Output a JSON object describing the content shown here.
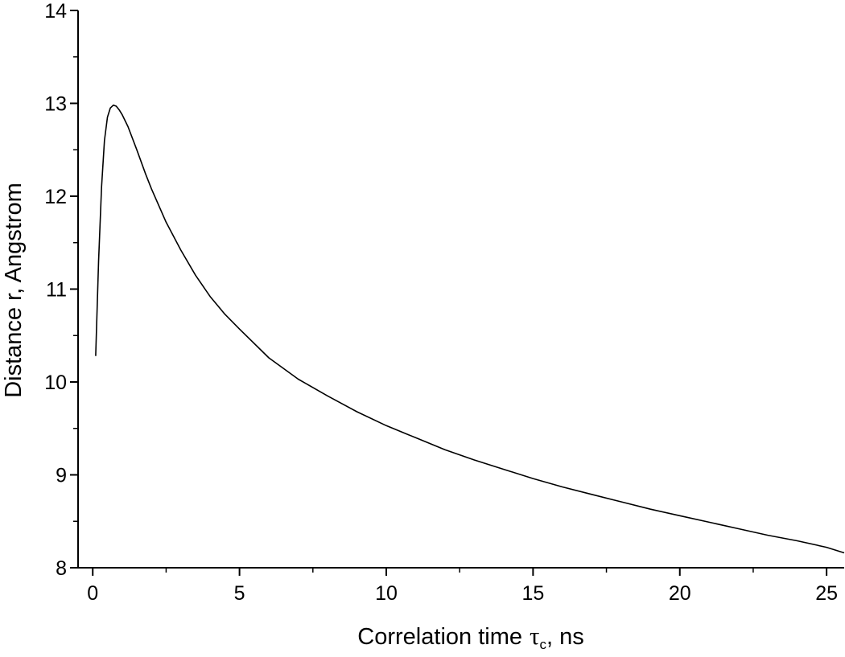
{
  "chart_data": {
    "type": "line",
    "title": "",
    "xlabel": "Correlation time",
    "xlabel_symbol": "τ",
    "xlabel_subscript": "c",
    "xlabel_unit": ", ns",
    "ylabel": "Distance r, Angstrom",
    "xlim": [
      -0.5,
      25.6
    ],
    "ylim": [
      8,
      14
    ],
    "xticks": [
      0,
      5,
      10,
      15,
      20,
      25
    ],
    "xtick_labels": [
      "0",
      "5",
      "10",
      "15",
      "20",
      "25"
    ],
    "yticks": [
      8,
      9,
      10,
      11,
      12,
      13,
      14
    ],
    "ytick_labels": [
      "8",
      "9",
      "10",
      "11",
      "12",
      "13",
      "14"
    ],
    "grid": false,
    "legend": "none",
    "line_color": "#000000",
    "series": [
      {
        "x": [
          0.1,
          0.2,
          0.3,
          0.4,
          0.5,
          0.6,
          0.7,
          0.8,
          0.9,
          1.0,
          1.2,
          1.5,
          1.8,
          2.0,
          2.5,
          3.0,
          3.5,
          4.0,
          4.5,
          5.0,
          6.0,
          7.0,
          8.0,
          9.0,
          10.0,
          11.0,
          12.0,
          13.0,
          14.0,
          15.0,
          16.0,
          17.0,
          18.0,
          19.0,
          20.0,
          21.0,
          22.0,
          23.0,
          24.0,
          25.0,
          25.6
        ],
        "y": [
          10.28,
          11.3,
          12.1,
          12.6,
          12.85,
          12.95,
          12.98,
          12.97,
          12.93,
          12.88,
          12.75,
          12.5,
          12.24,
          12.08,
          11.72,
          11.42,
          11.15,
          10.92,
          10.73,
          10.57,
          10.26,
          10.03,
          9.85,
          9.68,
          9.53,
          9.4,
          9.27,
          9.16,
          9.06,
          8.96,
          8.87,
          8.79,
          8.71,
          8.63,
          8.56,
          8.49,
          8.42,
          8.35,
          8.29,
          8.22,
          8.16
        ]
      }
    ]
  }
}
